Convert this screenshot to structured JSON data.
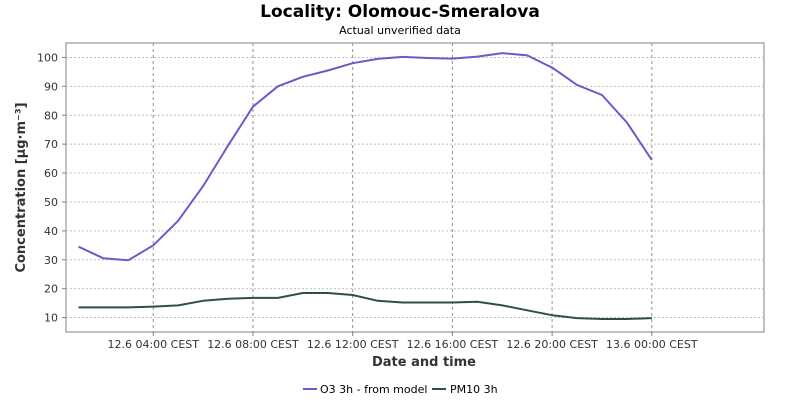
{
  "chart_data": {
    "type": "line",
    "title": "Locality: Olomouc-Smeralova",
    "subtitle": "Actual unverified data",
    "xlabel": "Date and time",
    "ylabel": "Concentration [µg·m⁻³]",
    "ylim": [
      5,
      105
    ],
    "yticks": [
      10,
      20,
      30,
      40,
      50,
      60,
      70,
      80,
      90,
      100
    ],
    "xlim": [
      "12.6 00:30 CEST",
      "13.6 04:30 CEST"
    ],
    "xtick_labels": [
      "12.6 04:00 CEST",
      "12.6 08:00 CEST",
      "12.6 12:00 CEST",
      "12.6 16:00 CEST",
      "12.6 20:00 CEST",
      "13.6 00:00 CEST"
    ],
    "grid": true,
    "legend_position": "bottom",
    "x": [
      "12.6 01:00",
      "12.6 02:00",
      "12.6 03:00",
      "12.6 04:00",
      "12.6 05:00",
      "12.6 06:00",
      "12.6 07:00",
      "12.6 08:00",
      "12.6 09:00",
      "12.6 10:00",
      "12.6 11:00",
      "12.6 12:00",
      "12.6 13:00",
      "12.6 14:00",
      "12.6 15:00",
      "12.6 16:00",
      "12.6 17:00",
      "12.6 18:00",
      "12.6 19:00",
      "12.6 20:00",
      "12.6 21:00",
      "12.6 22:00",
      "12.6 23:00",
      "13.6 00:00",
      "13.6 01:00"
    ],
    "series": [
      {
        "name": "O3 3h - from model",
        "color": "#6a5acd",
        "values": [
          34.5,
          30.5,
          29.8,
          35.0,
          43.5,
          55.5,
          69.5,
          83.0,
          90.0,
          93.3,
          95.5,
          98.0,
          99.5,
          100.2,
          99.8,
          99.6,
          100.3,
          101.5,
          100.7,
          96.5,
          90.5,
          87.0,
          77.5,
          64.5,
          null
        ]
      },
      {
        "name": "PM10 3h",
        "color": "#2f4f4f",
        "values": [
          13.5,
          13.5,
          13.5,
          13.8,
          14.2,
          15.8,
          16.5,
          16.8,
          16.8,
          18.5,
          18.5,
          17.8,
          15.8,
          15.2,
          15.2,
          15.2,
          15.5,
          14.2,
          12.5,
          10.8,
          9.8,
          9.5,
          9.5,
          9.8,
          null
        ]
      }
    ]
  }
}
